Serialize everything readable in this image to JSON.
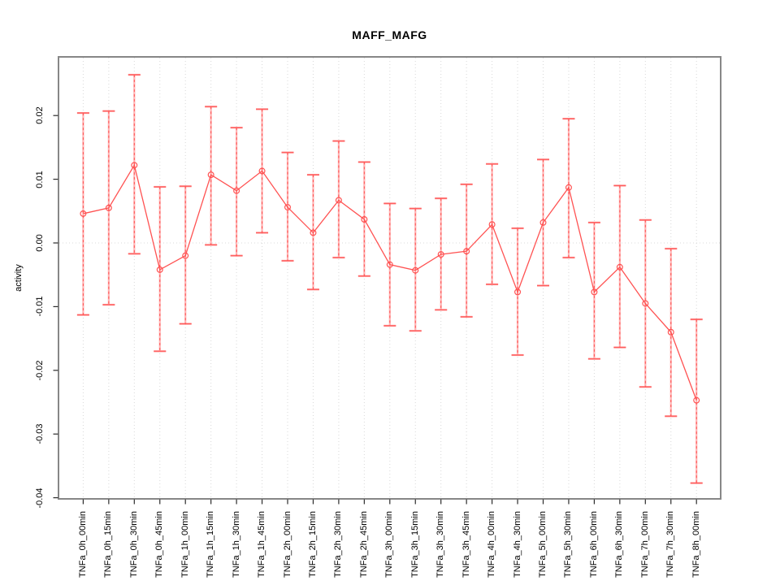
{
  "chart_data": {
    "type": "line",
    "title": "MAFF_MAFG",
    "xlabel": "",
    "ylabel": "activity",
    "categories": [
      "TNFa_0h_00min",
      "TNFa_0h_15min",
      "TNFa_0h_30min",
      "TNFa_0h_45min",
      "TNFa_1h_00min",
      "TNFa_1h_15min",
      "TNFa_1h_30min",
      "TNFa_1h_45min",
      "TNFa_2h_00min",
      "TNFa_2h_15min",
      "TNFa_2h_30min",
      "TNFa_2h_45min",
      "TNFa_3h_00min",
      "TNFa_3h_15min",
      "TNFa_3h_30min",
      "TNFa_3h_45min",
      "TNFa_4h_00min",
      "TNFa_4h_30min",
      "TNFa_5h_00min",
      "TNFa_5h_30min",
      "TNFa_6h_00min",
      "TNFa_6h_30min",
      "TNFa_7h_00min",
      "TNFa_7h_30min",
      "TNFa_8h_00min"
    ],
    "series": [
      {
        "name": "activity",
        "values": [
          0.0046,
          0.0055,
          0.0122,
          -0.0042,
          -0.002,
          0.0107,
          0.0082,
          0.0113,
          0.0056,
          0.0016,
          0.0067,
          0.0037,
          -0.0034,
          -0.0043,
          -0.0018,
          -0.0013,
          0.0029,
          -0.0077,
          0.0032,
          0.0087,
          -0.0077,
          -0.0038,
          -0.0095,
          -0.014,
          -0.0247
        ],
        "error_low": [
          -0.0113,
          -0.0097,
          -0.0017,
          -0.017,
          -0.0127,
          -0.0003,
          -0.002,
          0.0016,
          -0.0028,
          -0.0073,
          -0.0023,
          -0.0052,
          -0.013,
          -0.0138,
          -0.0105,
          -0.0116,
          -0.0065,
          -0.0176,
          -0.0067,
          -0.0023,
          -0.0182,
          -0.0164,
          -0.0226,
          -0.0272,
          -0.0377
        ],
        "error_high": [
          0.0204,
          0.0207,
          0.0264,
          0.0088,
          0.0089,
          0.0214,
          0.0181,
          0.021,
          0.0142,
          0.0107,
          0.016,
          0.0127,
          0.0062,
          0.0054,
          0.007,
          0.0092,
          0.0124,
          0.0023,
          0.0131,
          0.0195,
          0.0032,
          0.009,
          0.0036,
          -0.0009,
          -0.012
        ]
      }
    ],
    "y_ticks": [
      0.02,
      0.01,
      0.0,
      -0.01,
      -0.02,
      -0.03,
      -0.04
    ],
    "ylim": [
      -0.0402,
      0.0292
    ],
    "grid": "vertical-dotted-per-category-plus-zero-line",
    "legend_position": "none",
    "marker": "open-circle",
    "colors": {
      "series_line": "#ff5252",
      "error_bar_light": "#ffb3b3",
      "error_bar_cap": "#ff8a8a",
      "error_bar_dash": "#ff5252",
      "gridline": "#d8d8d8",
      "plot_border": "#878787",
      "axis_tick": "#2b2b2b",
      "text": "#000000"
    }
  }
}
